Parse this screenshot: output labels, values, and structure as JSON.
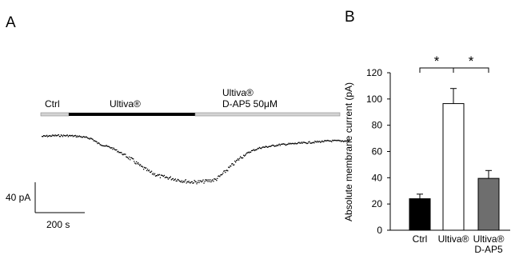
{
  "chart_data": [
    {
      "panel": "A",
      "type": "line",
      "protocol": [
        {
          "label": "Ctrl",
          "color": "#d4d4d4"
        },
        {
          "label": "Ultiva®",
          "color": "#000000"
        },
        {
          "label": "Ultiva®\nD-AP5 50μM",
          "color": "#d4d4d4"
        }
      ],
      "scale_bar": {
        "y_label": "40 pA",
        "x_label": "200 s"
      },
      "x_unit": "s",
      "y_unit": "pA",
      "trace": {
        "x": [
          0,
          50,
          100,
          150,
          200,
          225,
          250,
          280,
          320,
          360,
          400,
          440,
          480,
          520,
          560,
          600,
          640,
          680,
          700,
          720,
          760,
          800,
          840,
          880,
          920,
          960,
          1000,
          1040,
          1080,
          1120,
          1160,
          1200,
          1240
        ],
        "y": [
          0,
          1,
          1,
          0,
          -3,
          -9,
          -12,
          -15,
          -22,
          -30,
          -40,
          -48,
          -53,
          -55,
          -58,
          -60,
          -60,
          -58,
          -57,
          -52,
          -40,
          -28,
          -20,
          -15,
          -13,
          -11,
          -10,
          -9,
          -8,
          -7,
          -6,
          -6,
          -6
        ]
      }
    },
    {
      "panel": "B",
      "type": "bar",
      "ylabel": "Absolute membrane current (pA)",
      "ylim": [
        0,
        120
      ],
      "yticks": [
        "0",
        "20",
        "40",
        "60",
        "80",
        "100",
        "120"
      ],
      "categories": [
        "Ctrl",
        "Ultiva®",
        "Ultiva®\nD-AP5"
      ],
      "values": [
        24,
        96.5,
        39.5
      ],
      "errors": [
        3.5,
        11.5,
        6
      ],
      "fills": [
        "#000000",
        "#ffffff",
        "#6e6e6e"
      ],
      "significance": [
        {
          "from": 0,
          "to": 1,
          "label": "*"
        },
        {
          "from": 1,
          "to": 2,
          "label": "*"
        }
      ]
    }
  ]
}
